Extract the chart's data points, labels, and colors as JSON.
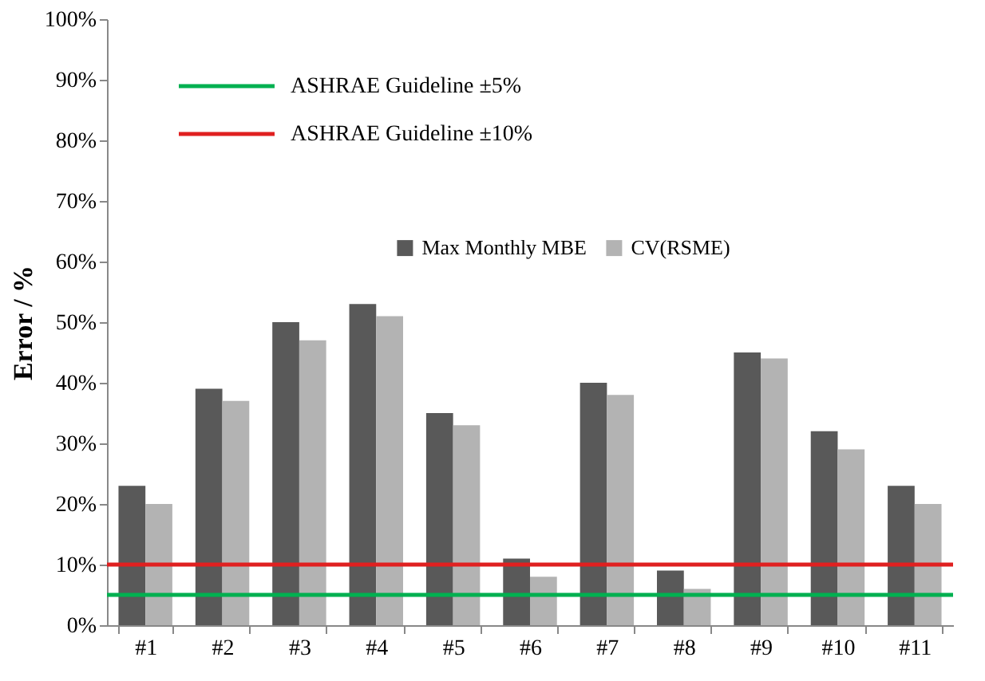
{
  "chart_data": {
    "type": "bar",
    "ylabel": "Error / %",
    "categories": [
      "#1",
      "#2",
      "#3",
      "#4",
      "#5",
      "#6",
      "#7",
      "#8",
      "#9",
      "#10",
      "#11"
    ],
    "series": [
      {
        "name": "Max Monthly MBE",
        "color": "#595959",
        "values": [
          23,
          39,
          50,
          53,
          35,
          11,
          40,
          9,
          45,
          32,
          23
        ]
      },
      {
        "name": "CV(RSME)",
        "color": "#b3b3b3",
        "values": [
          20,
          37,
          47,
          51,
          33,
          8,
          38,
          6,
          44,
          29,
          20
        ]
      }
    ],
    "ylim": [
      0,
      100
    ],
    "yticks": [
      {
        "value": 0,
        "label": "0%"
      },
      {
        "value": 10,
        "label": "10%"
      },
      {
        "value": 20,
        "label": "20%"
      },
      {
        "value": 30,
        "label": "30%"
      },
      {
        "value": 40,
        "label": "40%"
      },
      {
        "value": 50,
        "label": "50%"
      },
      {
        "value": 60,
        "label": "60%"
      },
      {
        "value": 70,
        "label": "70%"
      },
      {
        "value": 80,
        "label": "80%"
      },
      {
        "value": 90,
        "label": "90%"
      },
      {
        "value": 100,
        "label": "100%"
      }
    ],
    "ref_lines": [
      {
        "axis": "y",
        "value": 5,
        "label": "ASHRAE Guideline ±5%",
        "color": "#00b050"
      },
      {
        "axis": "y",
        "value": 10,
        "label": "ASHRAE Guideline ±10%",
        "color": "#e02020"
      }
    ],
    "grid": false,
    "legend": "top"
  }
}
